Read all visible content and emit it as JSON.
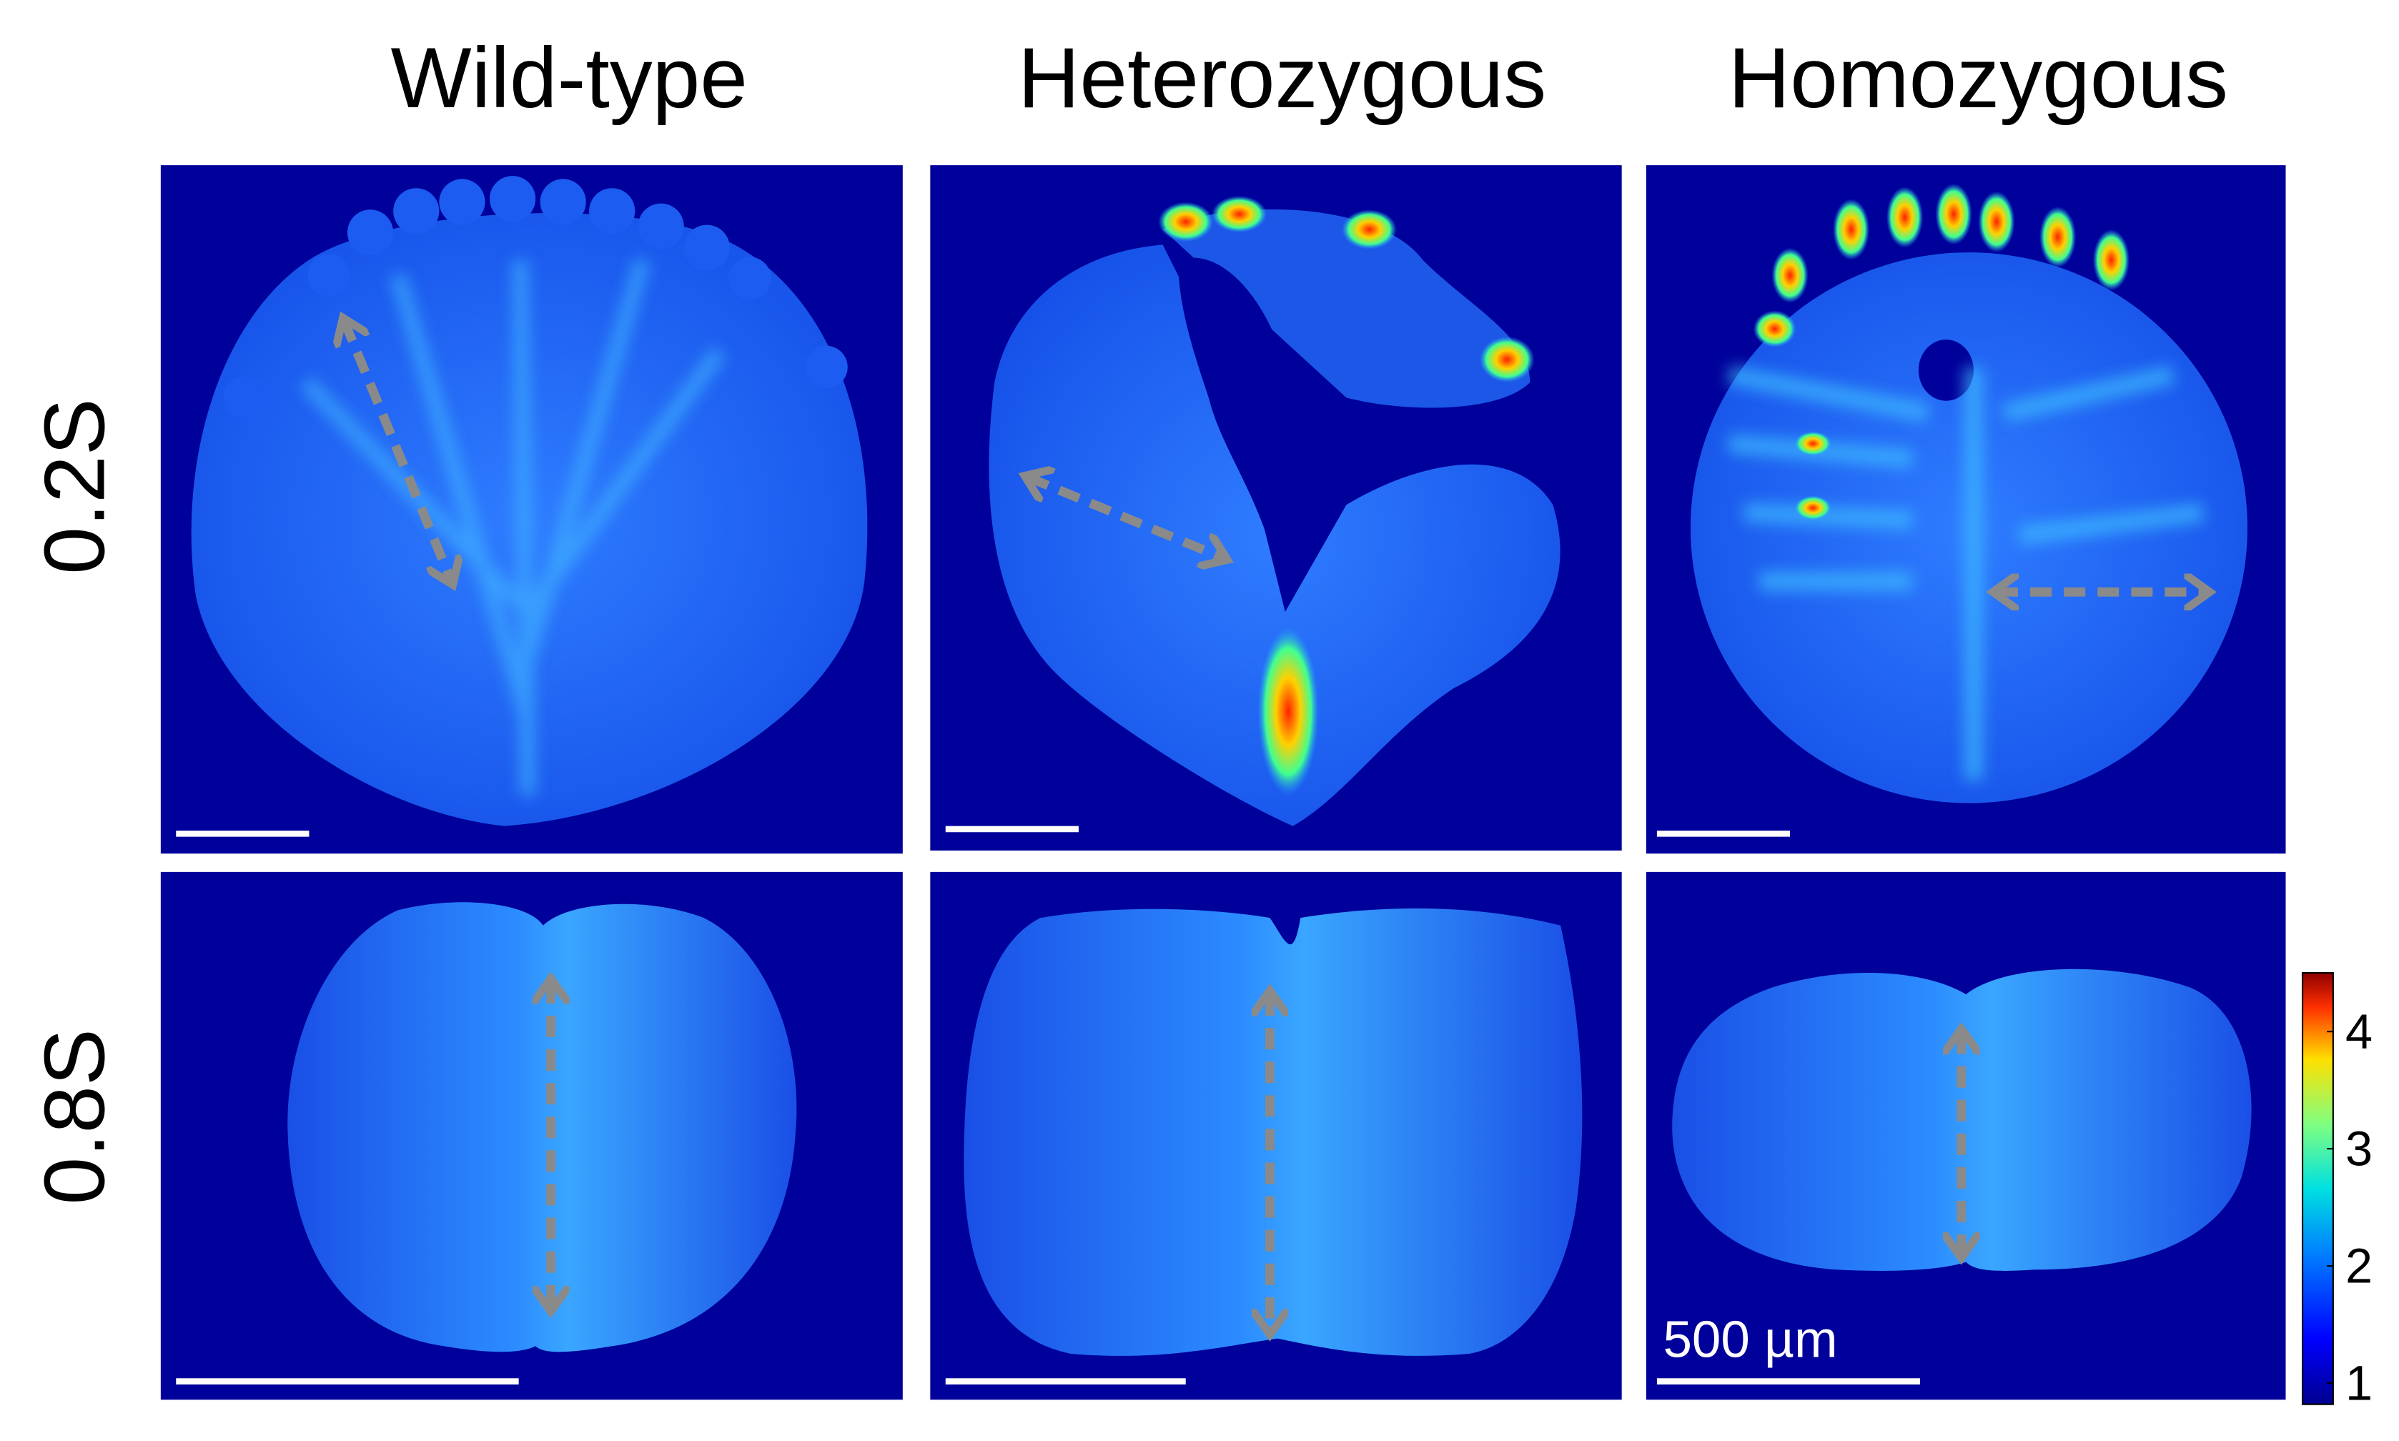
{
  "header": {
    "columns": [
      "Wild-type",
      "Heterozygous",
      "Homozygous"
    ],
    "rows": [
      "0.2S",
      "0.8S"
    ]
  },
  "colorbar": {
    "lim": [
      0.82,
      4.5
    ],
    "ticks": [
      1,
      2,
      3,
      4
    ]
  },
  "scale_bar_label": "500 µm"
}
